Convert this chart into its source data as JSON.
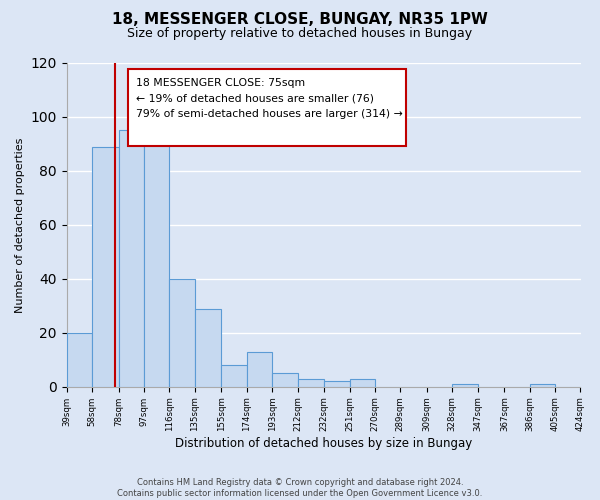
{
  "title": "18, MESSENGER CLOSE, BUNGAY, NR35 1PW",
  "subtitle": "Size of property relative to detached houses in Bungay",
  "xlabel": "Distribution of detached houses by size in Bungay",
  "ylabel": "Number of detached properties",
  "bar_edges": [
    39,
    58,
    78,
    97,
    116,
    135,
    155,
    174,
    193,
    212,
    232,
    251,
    270,
    289,
    309,
    328,
    347,
    367,
    386,
    405,
    424
  ],
  "bar_heights": [
    20,
    89,
    95,
    93,
    40,
    29,
    8,
    13,
    5,
    3,
    2,
    3,
    0,
    0,
    0,
    1,
    0,
    0,
    1,
    0
  ],
  "bar_color": "#c6d9f0",
  "bar_edgecolor": "#5b9bd5",
  "vline_x": 75,
  "vline_color": "#c00000",
  "ylim": [
    0,
    120
  ],
  "yticks": [
    0,
    20,
    40,
    60,
    80,
    100,
    120
  ],
  "annotation_box_text": "18 MESSENGER CLOSE: 75sqm\n← 19% of detached houses are smaller (76)\n79% of semi-detached houses are larger (314) →",
  "footer_text": "Contains HM Land Registry data © Crown copyright and database right 2024.\nContains public sector information licensed under the Open Government Licence v3.0.",
  "tick_labels": [
    "39sqm",
    "58sqm",
    "78sqm",
    "97sqm",
    "116sqm",
    "135sqm",
    "155sqm",
    "174sqm",
    "193sqm",
    "212sqm",
    "232sqm",
    "251sqm",
    "270sqm",
    "289sqm",
    "309sqm",
    "328sqm",
    "347sqm",
    "367sqm",
    "386sqm",
    "405sqm",
    "424sqm"
  ],
  "bg_color": "#dce6f5"
}
